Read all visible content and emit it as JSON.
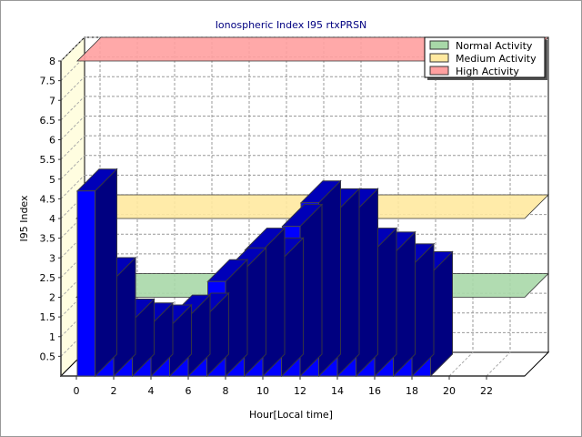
{
  "chart_data": {
    "type": "bar",
    "title": "Ionospheric Index I95 rtxPRSN",
    "xlabel": "Hour[Local time]",
    "ylabel": "I95 Index",
    "ylim": [
      0,
      8
    ],
    "xlim": [
      0,
      24
    ],
    "x_ticks": [
      0,
      2,
      4,
      6,
      8,
      10,
      12,
      14,
      16,
      18,
      20,
      22
    ],
    "y_ticks": [
      "0.5",
      "1",
      "1.5",
      "2",
      "2.5",
      "3",
      "3.5",
      "4",
      "4.5",
      "5",
      "5.5",
      "6",
      "6.5",
      "7",
      "7.5",
      "8"
    ],
    "x": [
      0,
      1,
      2,
      3,
      4,
      5,
      6,
      7,
      8,
      9,
      10,
      11,
      12,
      13,
      14,
      15,
      16,
      17,
      18
    ],
    "values": [
      4.7,
      2.45,
      1.4,
      1.3,
      1.25,
      1.5,
      1.55,
      2.4,
      2.7,
      3.2,
      2.95,
      3.8,
      4.4,
      4.2,
      4.2,
      3.2,
      3.1,
      2.8,
      2.6
    ],
    "bar_color": "#0000ff",
    "grid": true,
    "legend_position": "top-right",
    "thresholds": [
      {
        "name": "Normal Activity",
        "value": 2,
        "color": "#a8d8a8"
      },
      {
        "name": "Medium Activity",
        "value": 4,
        "color": "#ffe9a0"
      },
      {
        "name": "High Activity",
        "value": 8,
        "color": "#ffa0a0"
      }
    ]
  }
}
